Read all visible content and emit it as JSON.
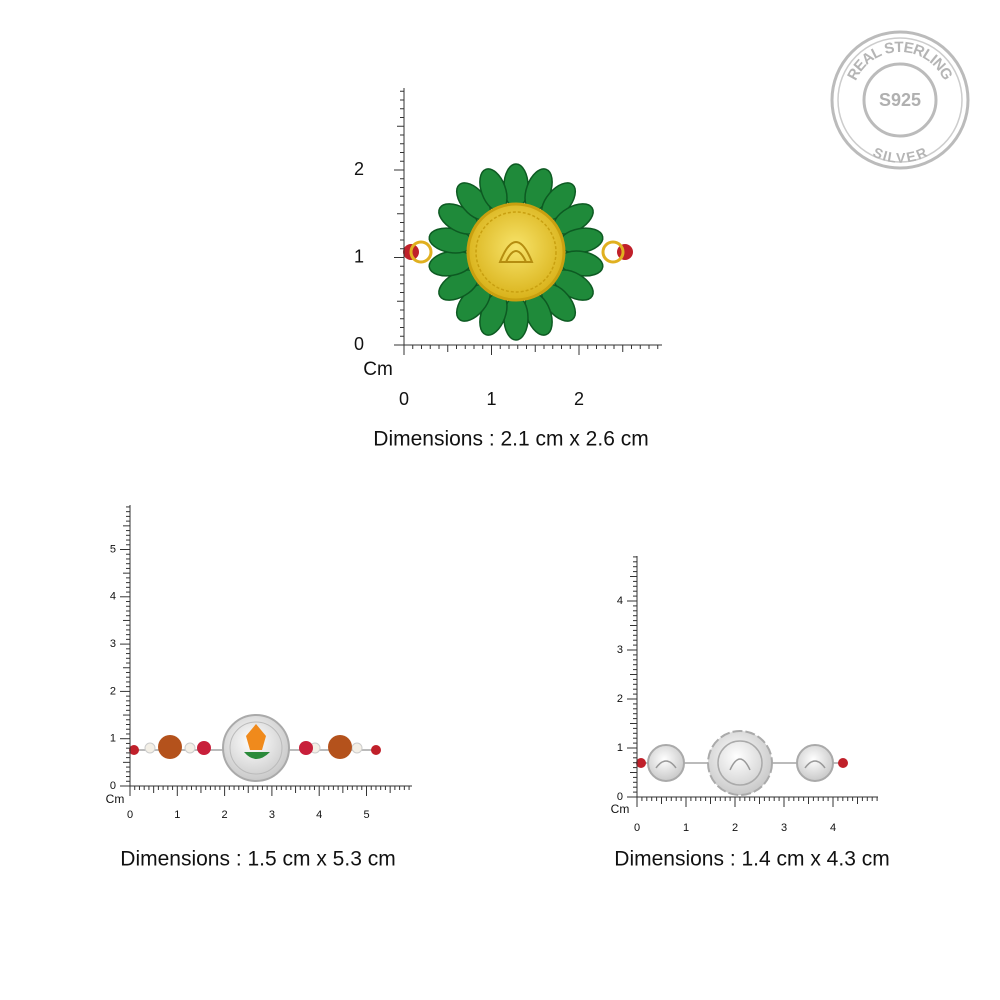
{
  "badge": {
    "top": "REAL STERLING",
    "center": "S925",
    "bottom": "SILVER"
  },
  "products": [
    {
      "unit": "Cm",
      "y_labels": [
        0,
        1,
        2
      ],
      "x_labels": [
        0,
        1,
        2
      ],
      "caption": "Dimensions : 2.1 cm x 2.6 cm"
    },
    {
      "unit": "Cm",
      "y_labels": [
        0,
        1,
        2,
        3,
        4,
        5
      ],
      "x_labels": [
        0,
        1,
        2,
        3,
        4,
        5
      ],
      "caption": "Dimensions : 1.5 cm x 5.3 cm"
    },
    {
      "unit": "Cm",
      "y_labels": [
        0,
        1,
        2,
        3,
        4
      ],
      "x_labels": [
        0,
        1,
        2,
        3,
        4
      ],
      "caption": "Dimensions : 1.4 cm x 4.3 cm"
    }
  ]
}
